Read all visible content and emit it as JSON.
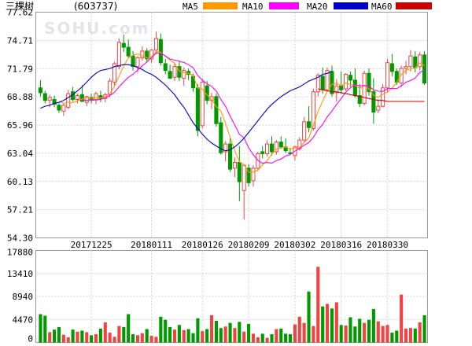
{
  "header": {
    "stock_name": "三棵树",
    "stock_code": "(603737)",
    "watermark": "SOHU.com"
  },
  "legend": [
    {
      "label": "MA5",
      "color": "#ff9900"
    },
    {
      "label": "MA10",
      "color": "#ff00ff"
    },
    {
      "label": "MA20",
      "color": "#0000cc"
    },
    {
      "label": "MA60",
      "color": "#cc0000"
    }
  ],
  "colors": {
    "up": "#ee4444",
    "down": "#009900",
    "grid": "#d0d0d0",
    "frame": "#999999"
  },
  "chart_data": [
    {
      "type": "candlestick",
      "yticks": [
        "77.62",
        "74.71",
        "71.79",
        "68.88",
        "65.96",
        "63.04",
        "60.13",
        "57.21",
        "54.30"
      ],
      "ylim": [
        54.3,
        77.62
      ],
      "xticks": [
        {
          "label": "20171225",
          "index": 11
        },
        {
          "label": "20180111",
          "index": 24
        },
        {
          "label": "20180126",
          "index": 35
        },
        {
          "label": "20180209",
          "index": 45
        },
        {
          "label": "20180302",
          "index": 55
        },
        {
          "label": "20180316",
          "index": 65
        },
        {
          "label": "20180330",
          "index": 75
        }
      ],
      "ohlc": [
        [
          69.8,
          70.6,
          68.9,
          69.3
        ],
        [
          69.2,
          69.5,
          68.2,
          68.5
        ],
        [
          68.5,
          69.1,
          67.8,
          68.8
        ],
        [
          68.6,
          69.0,
          67.8,
          68.1
        ],
        [
          68.0,
          68.2,
          67.2,
          67.5
        ],
        [
          67.4,
          68.2,
          66.9,
          68.0
        ],
        [
          67.8,
          69.6,
          67.6,
          69.2
        ],
        [
          69.4,
          69.9,
          68.4,
          68.6
        ],
        [
          68.6,
          69.2,
          68.2,
          69.0
        ],
        [
          69.1,
          70.1,
          68.5,
          68.4
        ],
        [
          68.3,
          69.0,
          67.9,
          68.9
        ],
        [
          68.8,
          69.2,
          68.2,
          68.6
        ],
        [
          68.6,
          69.4,
          68.1,
          69.2
        ],
        [
          69.0,
          69.5,
          68.3,
          68.7
        ],
        [
          68.7,
          69.3,
          68.3,
          69.1
        ],
        [
          69.1,
          70.8,
          68.8,
          70.5
        ],
        [
          70.4,
          72.5,
          70.0,
          72.3
        ],
        [
          72.0,
          74.9,
          71.7,
          74.5
        ],
        [
          74.4,
          75.3,
          73.5,
          74.0
        ],
        [
          74.0,
          74.8,
          72.9,
          73.1
        ],
        [
          73.1,
          73.6,
          71.6,
          72.0
        ],
        [
          72.0,
          73.1,
          71.4,
          72.9
        ],
        [
          72.9,
          74.1,
          72.6,
          73.6
        ],
        [
          73.6,
          73.9,
          72.5,
          72.8
        ],
        [
          72.8,
          73.8,
          72.4,
          73.7
        ],
        [
          73.7,
          75.6,
          73.3,
          74.9
        ],
        [
          74.8,
          75.4,
          72.1,
          72.4
        ],
        [
          72.3,
          72.8,
          71.2,
          71.6
        ],
        [
          71.5,
          72.2,
          70.7,
          70.8
        ],
        [
          70.9,
          72.3,
          70.5,
          72.0
        ],
        [
          72.0,
          72.5,
          70.5,
          70.9
        ],
        [
          70.8,
          71.9,
          70.0,
          71.6
        ],
        [
          71.5,
          71.8,
          70.6,
          71.2
        ],
        [
          71.0,
          71.3,
          69.4,
          69.8
        ],
        [
          69.8,
          70.2,
          64.8,
          65.4
        ],
        [
          65.9,
          70.7,
          65.6,
          70.4
        ],
        [
          70.0,
          70.5,
          68.1,
          68.5
        ],
        [
          68.5,
          69.3,
          67.6,
          68.9
        ],
        [
          68.9,
          69.2,
          65.8,
          66.1
        ],
        [
          66.2,
          66.8,
          62.9,
          63.1
        ],
        [
          63.2,
          64.3,
          62.2,
          64.0
        ],
        [
          64.0,
          64.6,
          61.1,
          61.4
        ],
        [
          61.5,
          62.6,
          60.6,
          62.1
        ],
        [
          62.1,
          63.8,
          58.1,
          60.1
        ],
        [
          59.2,
          61.9,
          56.2,
          61.8
        ],
        [
          61.5,
          61.9,
          59.6,
          60.0
        ],
        [
          60.2,
          61.8,
          59.6,
          61.5
        ],
        [
          61.5,
          63.2,
          61.2,
          63.0
        ],
        [
          63.2,
          63.8,
          62.5,
          63.0
        ],
        [
          63.0,
          64.4,
          62.7,
          64.0
        ],
        [
          64.0,
          64.8,
          62.8,
          63.2
        ],
        [
          63.2,
          64.4,
          62.9,
          64.2
        ],
        [
          64.2,
          64.8,
          63.5,
          63.7
        ],
        [
          63.7,
          64.6,
          63.1,
          63.3
        ],
        [
          63.1,
          63.6,
          62.9,
          63.0
        ],
        [
          62.8,
          63.8,
          62.3,
          63.7
        ],
        [
          63.5,
          64.7,
          63.3,
          64.4
        ],
        [
          64.4,
          66.8,
          64.2,
          66.3
        ],
        [
          66.3,
          67.9,
          65.2,
          65.7
        ],
        [
          65.6,
          69.7,
          65.4,
          69.4
        ],
        [
          69.4,
          71.3,
          68.9,
          71.1
        ],
        [
          71.0,
          71.9,
          69.2,
          69.6
        ],
        [
          69.6,
          71.9,
          69.4,
          71.6
        ],
        [
          71.5,
          72.1,
          68.9,
          69.2
        ],
        [
          69.3,
          70.7,
          68.4,
          70.0
        ],
        [
          70.0,
          71.5,
          69.2,
          69.6
        ],
        [
          69.7,
          71.3,
          69.5,
          71.2
        ],
        [
          71.1,
          71.5,
          69.9,
          70.6
        ],
        [
          70.6,
          71.8,
          68.8,
          69.0
        ],
        [
          69.0,
          70.2,
          67.8,
          68.2
        ],
        [
          68.2,
          71.6,
          68.0,
          71.3
        ],
        [
          71.3,
          71.8,
          69.0,
          69.4
        ],
        [
          69.4,
          70.8,
          66.1,
          67.3
        ],
        [
          67.5,
          68.6,
          67.2,
          67.9
        ],
        [
          67.9,
          70.2,
          67.8,
          69.8
        ],
        [
          69.8,
          72.8,
          69.3,
          72.4
        ],
        [
          72.3,
          73.3,
          71.0,
          71.5
        ],
        [
          71.5,
          71.8,
          70.1,
          70.4
        ],
        [
          70.3,
          72.1,
          69.9,
          71.8
        ],
        [
          71.8,
          72.6,
          71.2,
          72.0
        ],
        [
          72.0,
          73.7,
          71.5,
          73.1
        ],
        [
          73.0,
          73.6,
          71.4,
          71.9
        ],
        [
          72.0,
          73.5,
          71.6,
          73.2
        ],
        [
          73.2,
          73.6,
          70.1,
          70.3
        ]
      ],
      "volume": [
        5500,
        5200,
        2000,
        2500,
        3000,
        1500,
        1000,
        2500,
        2100,
        2300,
        2000,
        1400,
        1600,
        2700,
        3900,
        1900,
        1100,
        3200,
        3000,
        5500,
        1600,
        1400,
        1800,
        2600,
        1300,
        1100,
        5000,
        4400,
        3000,
        2500,
        3400,
        2400,
        2600,
        1800,
        4700,
        2200,
        2600,
        5300,
        4200,
        2800,
        3100,
        3800,
        2800,
        4000,
        2100,
        3600,
        1700,
        1000,
        1700,
        900,
        1600,
        2600,
        2700,
        1700,
        1600,
        3500,
        5000,
        3800,
        9900,
        3200,
        14700,
        7000,
        7500,
        6600,
        7800,
        3400,
        3300,
        4900,
        3100,
        4600,
        3800,
        4400,
        6500,
        4100,
        3200,
        3400,
        1900,
        2300,
        9300,
        2700,
        2800,
        2700,
        3900,
        5300
      ],
      "vol_yticks": [
        "17880",
        "13410",
        "8940",
        "4470",
        "0"
      ],
      "vol_ylim": [
        0,
        17880
      ],
      "ma_lines": {
        "ma5_start": 4,
        "ma10_start": 9,
        "ma20": [
          67.7,
          67.9,
          68.0,
          68.2,
          68.3,
          68.5,
          68.8,
          69.1,
          69.5,
          69.9,
          70.4,
          70.9,
          71.3,
          71.6,
          71.7,
          71.8,
          72.0,
          72.1,
          72.2,
          72.2,
          72.1,
          71.9,
          71.7,
          71.4,
          71.2,
          70.9,
          70.5,
          70.1,
          69.6,
          69.1,
          68.4,
          67.8,
          67.0,
          66.2,
          65.6,
          65.0,
          64.5,
          64.1,
          63.8,
          63.5,
          63.3,
          63.4,
          63.7,
          64.1,
          64.6,
          65.2,
          65.8,
          66.4,
          67.0,
          67.6,
          68.1,
          68.5,
          68.9,
          69.2,
          69.5,
          69.7,
          69.9,
          70.2,
          70.5,
          70.7,
          70.9,
          71.2,
          71.3,
          71.5
        ],
        "ma20_start": 20,
        "ma60": [
          69.7,
          69.6,
          69.5,
          69.4,
          69.4,
          69.3,
          69.2,
          69.1,
          69.0,
          68.9,
          68.8,
          68.7,
          68.6,
          68.5,
          68.5,
          68.4,
          68.4,
          68.4,
          68.4,
          68.4,
          68.4,
          68.4,
          68.4,
          68.4
        ],
        "ma60_start": 60
      }
    }
  ]
}
